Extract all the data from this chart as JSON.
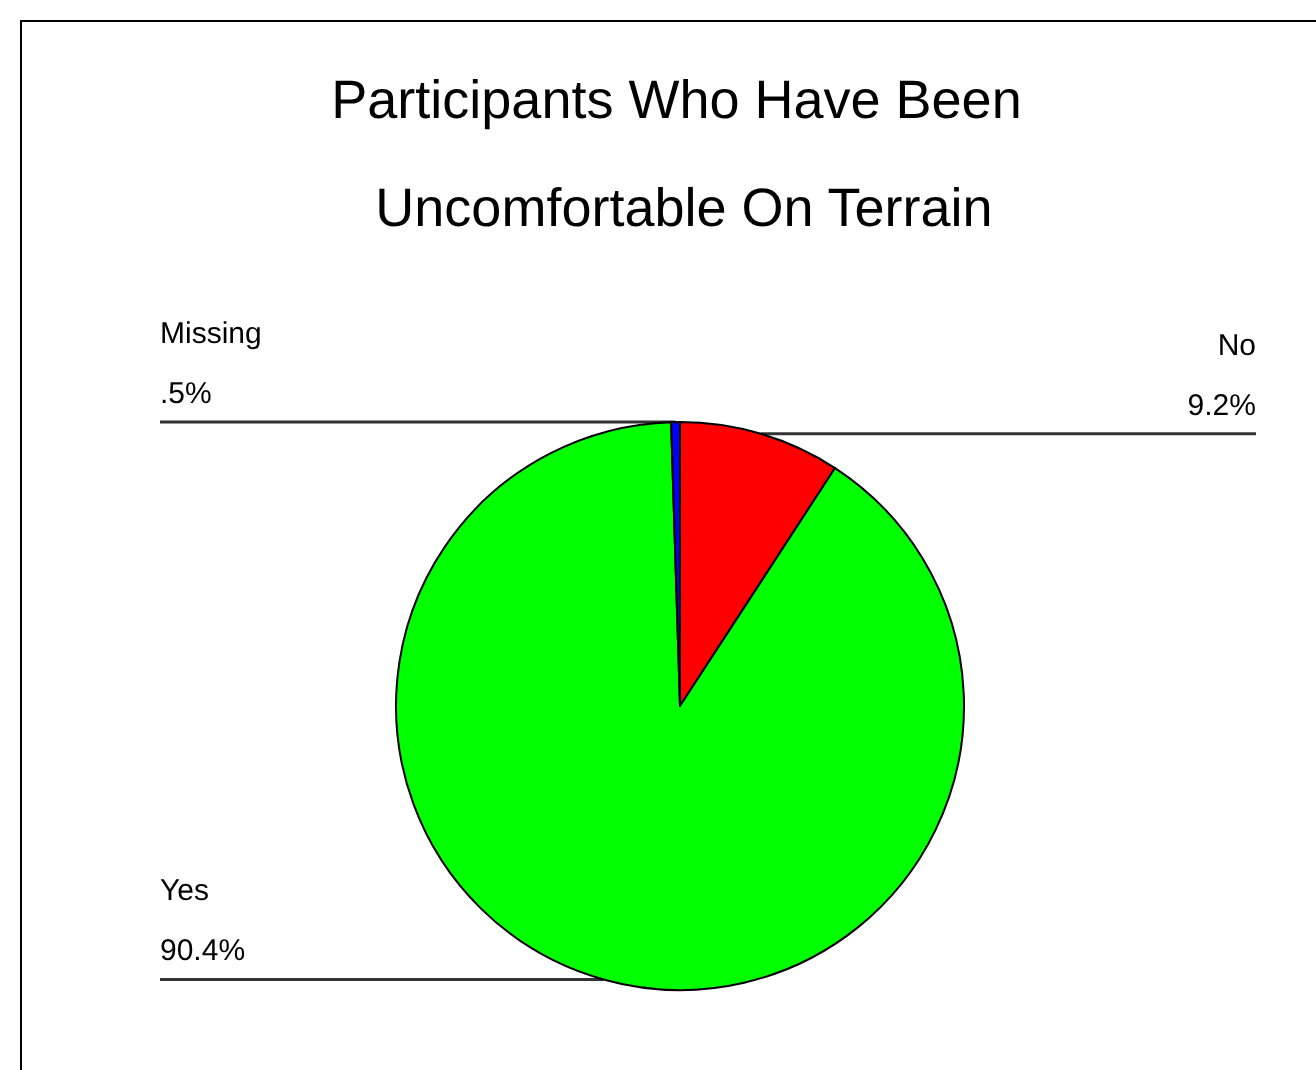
{
  "chart_data": {
    "type": "pie",
    "title": "Participants Who Have Been Uncomfortable On Terrain",
    "categories": [
      "No",
      "Yes",
      "Missing"
    ],
    "values": [
      9.2,
      90.4,
      0.5
    ],
    "colors": [
      "#ff0000",
      "#00ff00",
      "#0000ff"
    ],
    "value_labels": [
      "9.2%",
      "90.4%",
      ".5%"
    ]
  }
}
